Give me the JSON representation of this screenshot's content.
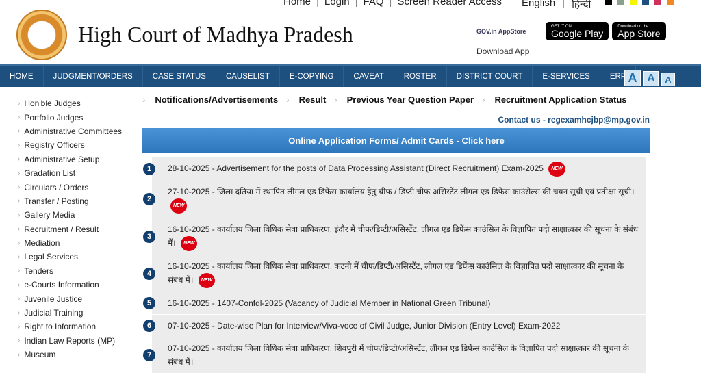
{
  "top_links": [
    "Home",
    "Login",
    "FAQ",
    "Screen Reader Access"
  ],
  "languages": [
    "English",
    "हिन्दी"
  ],
  "theme_colors": [
    "#000000",
    "#8aa08a",
    "#f5f500",
    "#1d4f7f",
    "#d0305a",
    "#f08a20"
  ],
  "site_title": "High Court of Madhya Pradesh",
  "apps": {
    "gov": "GOV.in AppStore",
    "google_small": "GET IT ON",
    "google": "Google Play",
    "apple_small": "Download on the",
    "apple": "App Store",
    "download_label": "Download App"
  },
  "nav": [
    "HOME",
    "JUDGMENT/ORDERS",
    "CASE STATUS",
    "CAUSELIST",
    "E-COPYING",
    "CAVEAT",
    "ROSTER",
    "DISTRICT COURT",
    "E-SERVICES",
    "ERP"
  ],
  "font_sizes": [
    "A",
    "A",
    "A"
  ],
  "sidebar": [
    "Hon'ble Judges",
    "Portfolio Judges",
    "Administrative Committees",
    "Registry Officers",
    "Administrative Setup",
    "Gradation List",
    "Circulars / Orders",
    "Transfer / Posting",
    "Gallery Media",
    "Recruitment / Result",
    "Mediation",
    "Legal Services",
    "Tenders",
    "e-Courts Information",
    "Juvenile Justice",
    "Judicial Training",
    "Right to Information",
    "Indian Law Reports (MP)",
    "Museum"
  ],
  "tabs": [
    "Notifications/Advertisements",
    "Result",
    "Previous Year Question Paper",
    "Recruitment Application Status"
  ],
  "contact": "Contact us - regexamhcjbp@mp.gov.in",
  "banner": "Online Application Forms/ Admit Cards - Click here",
  "new_badge": "NEW",
  "items": [
    {
      "n": "1",
      "text": "28-10-2025 - Advertisement for the posts of Data Processing Assistant (Direct Recruitment) Exam-2025",
      "new": true
    },
    {
      "n": "2",
      "text": "27-10-2025 - जिला दतिया में स्थापित लीगल एड डिफेंस कार्यालय हेतु चीफ / डिप्टी चीफ असिस्टेंट लीगल एड डिफेंस काउंसेल्स की चयन सूची एवं प्रतीक्षा सूची।",
      "new": true
    },
    {
      "n": "3",
      "text": "16-10-2025 - कार्यालय जिला विधिक सेवा प्राधिकरण, इंदौर में चीफ/डिप्टी/असिस्टेंट, लीगल एड डिफेंस काउंसिल के विज्ञापित पदो साक्षात्कार की सूचना के संबंध में।",
      "new": true
    },
    {
      "n": "4",
      "text": "16-10-2025 - कार्यालय जिला विधिक सेवा प्राधिकरण, कटनी में चीफ/डिप्टी/असिस्टेंट, लीगल एड डिफेंस काउंसिल के विज्ञापित पदो साक्षात्कार की सूचना के संबंध में।",
      "new": true
    },
    {
      "n": "5",
      "text": "16-10-2025 - 1407-Confdl-2025 (Vacancy of Judicial Member in National Green Tribunal)",
      "new": false
    },
    {
      "n": "6",
      "text": "07-10-2025 - Date-wise Plan for Interview/Viva-voce of Civil Judge, Junior Division (Entry Level) Exam-2022",
      "new": false
    },
    {
      "n": "7",
      "text": "07-10-2025 - कार्यालय जिला विधिक सेवा प्राधिकरण, शिवपुरी में चीफ/डिप्टी/असिस्टेंट, लीगल एड डिफेंस काउंसिल के विज्ञापित पदो साक्षात्कार की सूचना के संबंध में।",
      "new": false
    }
  ]
}
